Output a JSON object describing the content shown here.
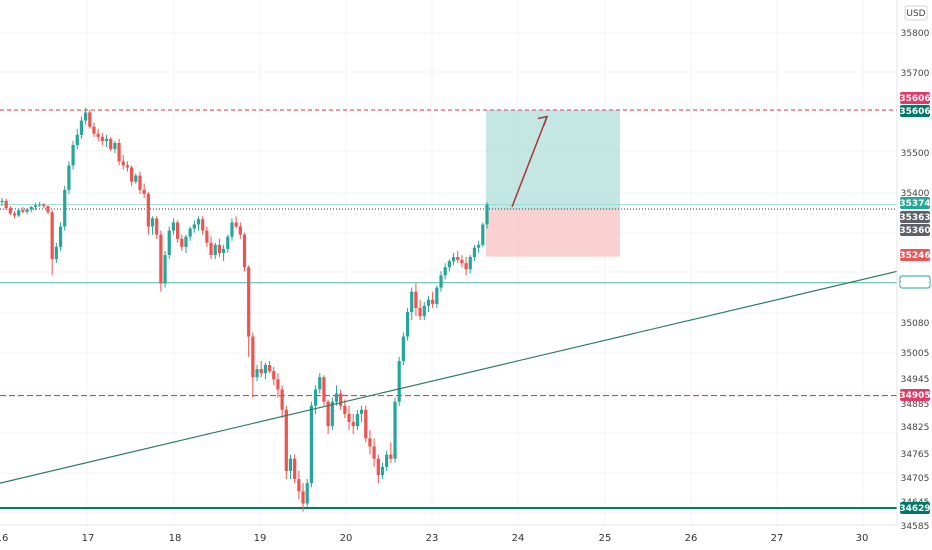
{
  "currency": "USD",
  "colors": {
    "up": "#26a69a",
    "down": "#ef5350",
    "target_zone": "#b2dfdb",
    "stop_zone": "#f9c9c9",
    "trendline": "#2e7d5b",
    "resistance": "#e53955",
    "support": "#00796b",
    "arrow": "#a33a3a",
    "entry_line": "#333333",
    "grid": "#f0f3f4"
  },
  "chart_data": {
    "type": "candlestick",
    "price_ticks": [
      "35800",
      "35700",
      "35500",
      "35400",
      "35180",
      "35080",
      "35005",
      "34945",
      "34885",
      "34825",
      "34765",
      "34705",
      "34645",
      "34585"
    ],
    "date_ticks": [
      "16",
      "17",
      "18",
      "19",
      "20",
      "23",
      "24",
      "25",
      "26",
      "27",
      "30"
    ],
    "levels": [
      {
        "label": "35606",
        "style": "dashed",
        "color": "#e53955"
      },
      {
        "label": "35606",
        "style": "badge",
        "color": "#00796b"
      },
      {
        "label": "35374",
        "style": "thin",
        "color": "#26a69a"
      },
      {
        "label": "35363",
        "style": "dotted",
        "color": "#555555"
      },
      {
        "label": "35360",
        "style": "badge",
        "color": "#555555"
      },
      {
        "label": "35246",
        "style": "badge",
        "color": "#ef5350"
      },
      {
        "label": "35182",
        "style": "solid",
        "color": "#26a69a"
      },
      {
        "label": "34905",
        "style": "dashed",
        "color": "#e53955"
      },
      {
        "label": "34629",
        "style": "thick",
        "color": "#00796b"
      }
    ],
    "position": {
      "entry": 35363,
      "target": 35606,
      "stop": 35246,
      "direction": "long"
    },
    "trendline": {
      "start": 34690,
      "end": 35210,
      "from": "left edge",
      "to": "right edge"
    },
    "candles": [
      [
        35380,
        35390,
        35370,
        35383
      ],
      [
        35383,
        35388,
        35360,
        35365
      ],
      [
        35365,
        35370,
        35348,
        35352
      ],
      [
        35352,
        35358,
        35340,
        35347
      ],
      [
        35347,
        35365,
        35343,
        35360
      ],
      [
        35360,
        35368,
        35352,
        35356
      ],
      [
        35356,
        35365,
        35350,
        35362
      ],
      [
        35362,
        35370,
        35355,
        35368
      ],
      [
        35368,
        35378,
        35360,
        35372
      ],
      [
        35372,
        35380,
        35368,
        35374
      ],
      [
        35374,
        35378,
        35365,
        35370
      ],
      [
        35370,
        35372,
        35350,
        35355
      ],
      [
        35355,
        35360,
        35200,
        35240
      ],
      [
        35240,
        35280,
        35230,
        35270
      ],
      [
        35270,
        35330,
        35260,
        35320
      ],
      [
        35320,
        35420,
        35310,
        35410
      ],
      [
        35410,
        35480,
        35400,
        35470
      ],
      [
        35470,
        35530,
        35460,
        35520
      ],
      [
        35520,
        35560,
        35510,
        35545
      ],
      [
        35545,
        35590,
        35535,
        35580
      ],
      [
        35580,
        35612,
        35570,
        35600
      ],
      [
        35600,
        35606,
        35560,
        35565
      ],
      [
        35565,
        35575,
        35540,
        35548
      ],
      [
        35548,
        35560,
        35530,
        35540
      ],
      [
        35540,
        35550,
        35520,
        35530
      ],
      [
        35530,
        35545,
        35515,
        35535
      ],
      [
        35535,
        35540,
        35505,
        35510
      ],
      [
        35510,
        35530,
        35500,
        35525
      ],
      [
        35525,
        35535,
        35470,
        35480
      ],
      [
        35480,
        35495,
        35460,
        35470
      ],
      [
        35470,
        35480,
        35455,
        35465
      ],
      [
        35465,
        35470,
        35420,
        35430
      ],
      [
        35430,
        35450,
        35425,
        35445
      ],
      [
        35445,
        35455,
        35400,
        35410
      ],
      [
        35410,
        35425,
        35390,
        35400
      ],
      [
        35400,
        35405,
        35300,
        35320
      ],
      [
        35320,
        35345,
        35300,
        35340
      ],
      [
        35340,
        35345,
        35290,
        35300
      ],
      [
        35300,
        35310,
        35160,
        35180
      ],
      [
        35180,
        35260,
        35170,
        35250
      ],
      [
        35250,
        35320,
        35240,
        35310
      ],
      [
        35310,
        35340,
        35300,
        35330
      ],
      [
        35330,
        35335,
        35280,
        35290
      ],
      [
        35290,
        35300,
        35260,
        35270
      ],
      [
        35270,
        35300,
        35255,
        35295
      ],
      [
        35295,
        35320,
        35285,
        35315
      ],
      [
        35315,
        35335,
        35305,
        35325
      ],
      [
        35325,
        35345,
        35310,
        35338
      ],
      [
        35338,
        35345,
        35300,
        35310
      ],
      [
        35310,
        35320,
        35270,
        35280
      ],
      [
        35280,
        35295,
        35240,
        35250
      ],
      [
        35250,
        35280,
        35240,
        35275
      ],
      [
        35275,
        35290,
        35245,
        35255
      ],
      [
        35255,
        35275,
        35235,
        35265
      ],
      [
        35265,
        35300,
        35255,
        35295
      ],
      [
        35295,
        35340,
        35285,
        35330
      ],
      [
        35330,
        35345,
        35315,
        35320
      ],
      [
        35320,
        35330,
        35290,
        35300
      ],
      [
        35300,
        35305,
        35210,
        35220
      ],
      [
        35220,
        35225,
        35000,
        35050
      ],
      [
        35050,
        35060,
        34900,
        34950
      ],
      [
        34950,
        34980,
        34940,
        34970
      ],
      [
        34970,
        34990,
        34950,
        34960
      ],
      [
        34960,
        34985,
        34945,
        34980
      ],
      [
        34980,
        34990,
        34960,
        34965
      ],
      [
        34965,
        34975,
        34930,
        34945
      ],
      [
        34945,
        34960,
        34900,
        34920
      ],
      [
        34920,
        34930,
        34850,
        34870
      ],
      [
        34870,
        34880,
        34700,
        34720
      ],
      [
        34720,
        34760,
        34700,
        34750
      ],
      [
        34750,
        34760,
        34690,
        34700
      ],
      [
        34700,
        34720,
        34650,
        34670
      ],
      [
        34670,
        34690,
        34620,
        34640
      ],
      [
        34640,
        34700,
        34630,
        34690
      ],
      [
        34690,
        34890,
        34680,
        34880
      ],
      [
        34880,
        34930,
        34860,
        34920
      ],
      [
        34920,
        34960,
        34910,
        34950
      ],
      [
        34950,
        34955,
        34880,
        34890
      ],
      [
        34890,
        34895,
        34810,
        34830
      ],
      [
        34830,
        34900,
        34820,
        34890
      ],
      [
        34890,
        34930,
        34880,
        34910
      ],
      [
        34910,
        34920,
        34870,
        34880
      ],
      [
        34880,
        34895,
        34850,
        34860
      ],
      [
        34860,
        34880,
        34820,
        34840
      ],
      [
        34840,
        34860,
        34810,
        34830
      ],
      [
        34830,
        34870,
        34820,
        34860
      ],
      [
        34860,
        34880,
        34840,
        34870
      ],
      [
        34870,
        34880,
        34790,
        34800
      ],
      [
        34800,
        34820,
        34760,
        34780
      ],
      [
        34780,
        34800,
        34730,
        34750
      ],
      [
        34750,
        34760,
        34690,
        34710
      ],
      [
        34710,
        34740,
        34700,
        34730
      ],
      [
        34730,
        34770,
        34720,
        34760
      ],
      [
        34760,
        34790,
        34740,
        34750
      ],
      [
        34750,
        34900,
        34740,
        34890
      ],
      [
        34890,
        35000,
        34880,
        34990
      ],
      [
        34990,
        35060,
        34980,
        35050
      ],
      [
        35050,
        35120,
        35040,
        35110
      ],
      [
        35110,
        35170,
        35090,
        35160
      ],
      [
        35160,
        35180,
        35100,
        35120
      ],
      [
        35120,
        35140,
        35090,
        35100
      ],
      [
        35100,
        35135,
        35090,
        35125
      ],
      [
        35125,
        35150,
        35110,
        35140
      ],
      [
        35140,
        35160,
        35120,
        35130
      ],
      [
        35130,
        35175,
        35120,
        35170
      ],
      [
        35170,
        35210,
        35160,
        35200
      ],
      [
        35200,
        35230,
        35190,
        35220
      ],
      [
        35220,
        35240,
        35210,
        35235
      ],
      [
        35235,
        35255,
        35225,
        35245
      ],
      [
        35245,
        35260,
        35230,
        35238
      ],
      [
        35238,
        35250,
        35220,
        35230
      ],
      [
        35230,
        35245,
        35200,
        35215
      ],
      [
        35215,
        35250,
        35205,
        35245
      ],
      [
        35245,
        35275,
        35235,
        35268
      ],
      [
        35268,
        35285,
        35255,
        35275
      ],
      [
        35275,
        35330,
        35270,
        35325
      ],
      [
        35325,
        35380,
        35315,
        35374
      ]
    ]
  }
}
